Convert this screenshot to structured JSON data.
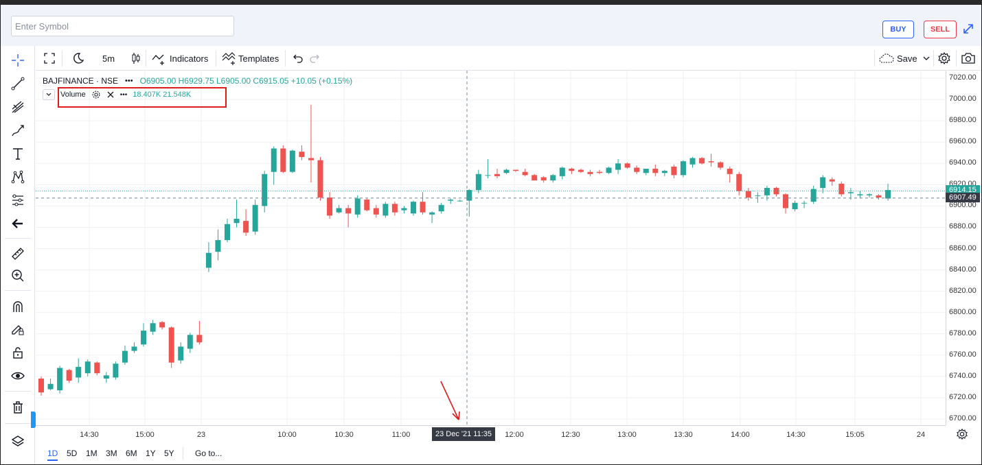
{
  "header": {
    "symbol_placeholder": "Enter Symbol",
    "buy_label": "BUY",
    "sell_label": "SELL"
  },
  "toolbar": {
    "interval": "5m",
    "indicators_label": "Indicators",
    "templates_label": "Templates",
    "save_label": "Save"
  },
  "legend": {
    "symbol": "BAJFINANCE · NSE",
    "values": "O6905.00 H6929.75 L6905.00 C6915.05 +10.05 (+0.15%)"
  },
  "volume": {
    "label": "Volume",
    "values": "18.407K 21.548K"
  },
  "price_axis": {
    "labels": [
      "7020.00",
      "7000.00",
      "6980.00",
      "6960.00",
      "6940.00",
      "6920.00",
      "6900.00",
      "6880.00",
      "6860.00",
      "6840.00",
      "6820.00",
      "6800.00",
      "6780.00",
      "6760.00",
      "6740.00",
      "6720.00",
      "6700.00"
    ],
    "last_price": "6914.15",
    "crosshair_price": "6907.49"
  },
  "time_axis": {
    "labels": [
      "14:30",
      "15:00",
      "23",
      "10:00",
      "10:30",
      "11:00",
      "12:00",
      "12:30",
      "13:00",
      "13:30",
      "14:00",
      "14:30",
      "15:05",
      "24"
    ],
    "crosshair_time": "23 Dec '21   11:35"
  },
  "ranges": [
    "1D",
    "5D",
    "1M",
    "3M",
    "6M",
    "1Y",
    "5Y"
  ],
  "goto_label": "Go to...",
  "colors": {
    "up": "#26a69a",
    "down": "#ef5350",
    "accent": "#2962ff",
    "highlight": "#e01b1b"
  },
  "chart_data": {
    "type": "candlestick",
    "ylim": [
      6695,
      7025
    ],
    "candles": [
      {
        "o": 6738,
        "h": 6740,
        "l": 6722,
        "c": 6725
      },
      {
        "o": 6728,
        "h": 6738,
        "l": 6727,
        "c": 6733
      },
      {
        "o": 6727,
        "h": 6750,
        "l": 6724,
        "c": 6748
      },
      {
        "o": 6746,
        "h": 6747,
        "l": 6734,
        "c": 6736
      },
      {
        "o": 6739,
        "h": 6757,
        "l": 6734,
        "c": 6749
      },
      {
        "o": 6743,
        "h": 6756,
        "l": 6740,
        "c": 6754
      },
      {
        "o": 6753,
        "h": 6754,
        "l": 6741,
        "c": 6743
      },
      {
        "o": 6738,
        "h": 6744,
        "l": 6734,
        "c": 6741
      },
      {
        "o": 6739,
        "h": 6754,
        "l": 6737,
        "c": 6752
      },
      {
        "o": 6753,
        "h": 6769,
        "l": 6751,
        "c": 6764
      },
      {
        "o": 6764,
        "h": 6772,
        "l": 6762,
        "c": 6768
      },
      {
        "o": 6770,
        "h": 6790,
        "l": 6768,
        "c": 6783
      },
      {
        "o": 6782,
        "h": 6793,
        "l": 6779,
        "c": 6790
      },
      {
        "o": 6791,
        "h": 6792,
        "l": 6784,
        "c": 6786
      },
      {
        "o": 6786,
        "h": 6787,
        "l": 6748,
        "c": 6753
      },
      {
        "o": 6755,
        "h": 6772,
        "l": 6752,
        "c": 6768
      },
      {
        "o": 6766,
        "h": 6781,
        "l": 6762,
        "c": 6779
      },
      {
        "o": 6779,
        "h": 6792,
        "l": 6770,
        "c": 6772
      },
      {
        "o": 6842,
        "h": 6866,
        "l": 6838,
        "c": 6856
      },
      {
        "o": 6857,
        "h": 6878,
        "l": 6849,
        "c": 6868
      },
      {
        "o": 6868,
        "h": 6888,
        "l": 6866,
        "c": 6883
      },
      {
        "o": 6884,
        "h": 6906,
        "l": 6880,
        "c": 6888
      },
      {
        "o": 6886,
        "h": 6897,
        "l": 6872,
        "c": 6875
      },
      {
        "o": 6876,
        "h": 6906,
        "l": 6873,
        "c": 6901
      },
      {
        "o": 6900,
        "h": 6933,
        "l": 6894,
        "c": 6930
      },
      {
        "o": 6932,
        "h": 6956,
        "l": 6920,
        "c": 6954
      },
      {
        "o": 6954,
        "h": 6957,
        "l": 6931,
        "c": 6932
      },
      {
        "o": 6932,
        "h": 6953,
        "l": 6931,
        "c": 6952
      },
      {
        "o": 6951,
        "h": 6957,
        "l": 6943,
        "c": 6946
      },
      {
        "o": 6945,
        "h": 6995,
        "l": 6922,
        "c": 6943
      },
      {
        "o": 6943,
        "h": 6946,
        "l": 6905,
        "c": 6908
      },
      {
        "o": 6908,
        "h": 6913,
        "l": 6888,
        "c": 6891
      },
      {
        "o": 6894,
        "h": 6901,
        "l": 6893,
        "c": 6898
      },
      {
        "o": 6898,
        "h": 6901,
        "l": 6880,
        "c": 6893
      },
      {
        "o": 6892,
        "h": 6910,
        "l": 6889,
        "c": 6907
      },
      {
        "o": 6906,
        "h": 6907,
        "l": 6895,
        "c": 6896
      },
      {
        "o": 6898,
        "h": 6901,
        "l": 6889,
        "c": 6892
      },
      {
        "o": 6891,
        "h": 6904,
        "l": 6889,
        "c": 6902
      },
      {
        "o": 6902,
        "h": 6904,
        "l": 6891,
        "c": 6894
      },
      {
        "o": 6896,
        "h": 6900,
        "l": 6893,
        "c": 6898
      },
      {
        "o": 6893,
        "h": 6905,
        "l": 6891,
        "c": 6904
      },
      {
        "o": 6904,
        "h": 6913,
        "l": 6892,
        "c": 6894
      },
      {
        "o": 6892,
        "h": 6895,
        "l": 6884,
        "c": 6894
      },
      {
        "o": 6895,
        "h": 6903,
        "l": 6893,
        "c": 6901
      },
      {
        "o": 6905,
        "h": 6907,
        "l": 6902,
        "c": 6906
      },
      {
        "o": 6905,
        "h": 6906,
        "l": 6904,
        "c": 6905
      },
      {
        "o": 6905,
        "h": 6916,
        "l": 6890,
        "c": 6915
      },
      {
        "o": 6915,
        "h": 6934,
        "l": 6912,
        "c": 6930
      },
      {
        "o": 6929,
        "h": 6944,
        "l": 6926,
        "c": 6929
      },
      {
        "o": 6930,
        "h": 6935,
        "l": 6926,
        "c": 6928
      },
      {
        "o": 6931,
        "h": 6935,
        "l": 6930,
        "c": 6934
      },
      {
        "o": 6934,
        "h": 6934,
        "l": 6932,
        "c": 6933
      },
      {
        "o": 6932,
        "h": 6935,
        "l": 6928,
        "c": 6929
      },
      {
        "o": 6929,
        "h": 6930,
        "l": 6924,
        "c": 6924
      },
      {
        "o": 6927,
        "h": 6928,
        "l": 6922,
        "c": 6924
      },
      {
        "o": 6924,
        "h": 6930,
        "l": 6922,
        "c": 6929
      },
      {
        "o": 6928,
        "h": 6937,
        "l": 6925,
        "c": 6936
      },
      {
        "o": 6935,
        "h": 6936,
        "l": 6930,
        "c": 6933
      },
      {
        "o": 6934,
        "h": 6935,
        "l": 6931,
        "c": 6932
      },
      {
        "o": 6932,
        "h": 6934,
        "l": 6928,
        "c": 6930
      },
      {
        "o": 6932,
        "h": 6934,
        "l": 6930,
        "c": 6931
      },
      {
        "o": 6931,
        "h": 6937,
        "l": 6930,
        "c": 6936
      },
      {
        "o": 6934,
        "h": 6944,
        "l": 6930,
        "c": 6940
      },
      {
        "o": 6940,
        "h": 6941,
        "l": 6935,
        "c": 6936
      },
      {
        "o": 6936,
        "h": 6938,
        "l": 6930,
        "c": 6932
      },
      {
        "o": 6931,
        "h": 6935,
        "l": 6929,
        "c": 6935
      },
      {
        "o": 6935,
        "h": 6939,
        "l": 6928,
        "c": 6931
      },
      {
        "o": 6931,
        "h": 6934,
        "l": 6928,
        "c": 6933
      },
      {
        "o": 6937,
        "h": 6939,
        "l": 6926,
        "c": 6929
      },
      {
        "o": 6929,
        "h": 6943,
        "l": 6927,
        "c": 6942
      },
      {
        "o": 6939,
        "h": 6946,
        "l": 6936,
        "c": 6945
      },
      {
        "o": 6945,
        "h": 6946,
        "l": 6939,
        "c": 6940
      },
      {
        "o": 6942,
        "h": 6949,
        "l": 6937,
        "c": 6941
      },
      {
        "o": 6941,
        "h": 6942,
        "l": 6934,
        "c": 6936
      },
      {
        "o": 6935,
        "h": 6937,
        "l": 6922,
        "c": 6930
      },
      {
        "o": 6930,
        "h": 6932,
        "l": 6910,
        "c": 6914
      },
      {
        "o": 6914,
        "h": 6917,
        "l": 6905,
        "c": 6908
      },
      {
        "o": 6910,
        "h": 6913,
        "l": 6903,
        "c": 6910
      },
      {
        "o": 6910,
        "h": 6919,
        "l": 6905,
        "c": 6917
      },
      {
        "o": 6917,
        "h": 6918,
        "l": 6909,
        "c": 6911
      },
      {
        "o": 6911,
        "h": 6912,
        "l": 6893,
        "c": 6898
      },
      {
        "o": 6897,
        "h": 6905,
        "l": 6895,
        "c": 6903
      },
      {
        "o": 6903,
        "h": 6905,
        "l": 6898,
        "c": 6903
      },
      {
        "o": 6904,
        "h": 6919,
        "l": 6902,
        "c": 6916
      },
      {
        "o": 6917,
        "h": 6929,
        "l": 6912,
        "c": 6927
      },
      {
        "o": 6925,
        "h": 6927,
        "l": 6919,
        "c": 6923
      },
      {
        "o": 6921,
        "h": 6923,
        "l": 6909,
        "c": 6911
      },
      {
        "o": 6912,
        "h": 6917,
        "l": 6906,
        "c": 6913
      },
      {
        "o": 6910,
        "h": 6914,
        "l": 6907,
        "c": 6911
      },
      {
        "o": 6910,
        "h": 6912,
        "l": 6908,
        "c": 6911
      },
      {
        "o": 6910,
        "h": 6911,
        "l": 6906,
        "c": 6908
      },
      {
        "o": 6907,
        "h": 6921,
        "l": 6905,
        "c": 6915
      }
    ]
  }
}
